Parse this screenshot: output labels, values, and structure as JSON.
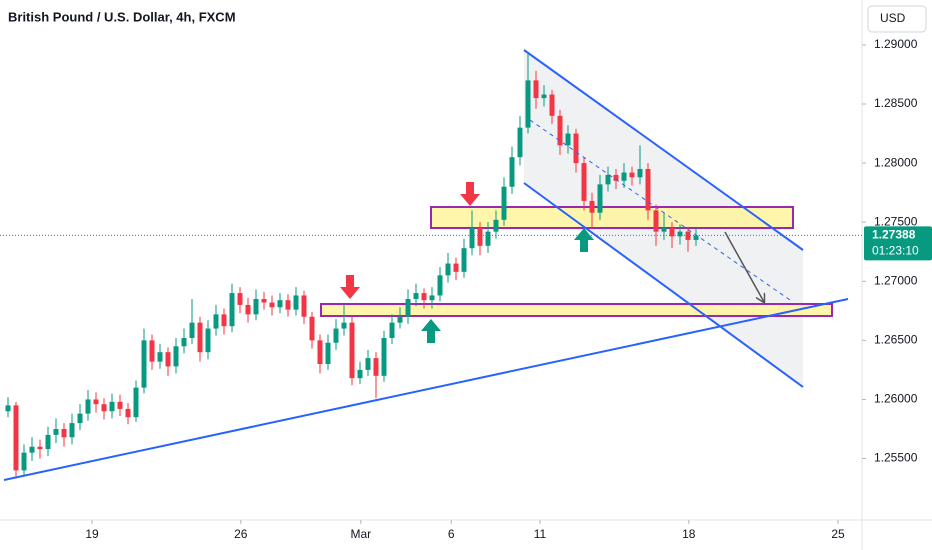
{
  "chart_data": {
    "type": "candlestick",
    "title": "British Pound / U.S. Dollar, 4h, FXCM",
    "currency": "USD",
    "last_price": 1.27388,
    "countdown": "01:23:10",
    "up_color": "#089981",
    "down_color": "#f23645",
    "open": [
      1.259,
      1.2595,
      1.254,
      1.2555,
      1.256,
      1.2558,
      1.257,
      1.2575,
      1.2568,
      1.258,
      1.2588,
      1.26,
      1.2596,
      1.259,
      1.2598,
      1.2592,
      1.2585,
      1.261,
      1.265,
      1.2632,
      1.264,
      1.2628,
      1.2645,
      1.2652,
      1.2665,
      1.264,
      1.266,
      1.2672,
      1.2662,
      1.269,
      1.268,
      1.2672,
      1.2685,
      1.2682,
      1.2678,
      1.2684,
      1.2676,
      1.2688,
      1.267,
      1.265,
      1.263,
      1.2648,
      1.266,
      1.2665,
      1.2618,
      1.2625,
      1.2635,
      1.262,
      1.2652,
      1.2665,
      1.267,
      1.2685,
      1.269,
      1.2684,
      1.2688,
      1.2705,
      1.2715,
      1.2708,
      1.2728,
      1.2745,
      1.273,
      1.2742,
      1.2752,
      1.278,
      1.2805,
      1.283,
      1.287,
      1.2855,
      1.2858,
      1.284,
      1.2815,
      1.2825,
      1.28,
      1.2768,
      1.2758,
      1.2782,
      1.279,
      1.2785,
      1.2792,
      1.2788,
      1.2795,
      1.276,
      1.2742,
      1.2745,
      1.2738,
      1.2742,
      1.2735
    ],
    "high": [
      1.2602,
      1.2598,
      1.2562,
      1.2568,
      1.2566,
      1.2577,
      1.2584,
      1.258,
      1.2588,
      1.2596,
      1.2608,
      1.2606,
      1.2601,
      1.2605,
      1.2604,
      1.2597,
      1.2616,
      1.266,
      1.2655,
      1.2647,
      1.2644,
      1.2652,
      1.266,
      1.2685,
      1.267,
      1.2667,
      1.268,
      1.2677,
      1.2698,
      1.2695,
      1.2686,
      1.2693,
      1.2691,
      1.2688,
      1.269,
      1.2689,
      1.2695,
      1.2692,
      1.2674,
      1.2655,
      1.2655,
      1.2668,
      1.268,
      1.267,
      1.2632,
      1.2642,
      1.264,
      1.2658,
      1.2672,
      1.2678,
      1.2693,
      1.2698,
      1.2694,
      1.2695,
      1.2712,
      1.2724,
      1.272,
      1.2736,
      1.276,
      1.275,
      1.275,
      1.276,
      1.2788,
      1.2814,
      1.284,
      1.2893,
      1.2878,
      1.2866,
      1.2862,
      1.2845,
      1.2832,
      1.2829,
      1.2805,
      1.2775,
      1.279,
      1.2797,
      1.2795,
      1.28,
      1.2797,
      1.2815,
      1.28,
      1.2765,
      1.2758,
      1.275,
      1.2748,
      1.2746,
      1.2745
    ],
    "low": [
      1.2585,
      1.2533,
      1.2536,
      1.2548,
      1.255,
      1.2552,
      1.2563,
      1.256,
      1.2562,
      1.2574,
      1.2582,
      1.2589,
      1.2583,
      1.2584,
      1.2586,
      1.2579,
      1.2581,
      1.2605,
      1.2625,
      1.2626,
      1.262,
      1.2622,
      1.2639,
      1.2647,
      1.2632,
      1.2634,
      1.2654,
      1.2655,
      1.2657,
      1.2673,
      1.2665,
      1.2667,
      1.2676,
      1.2671,
      1.2673,
      1.267,
      1.2671,
      1.2664,
      1.2643,
      1.2622,
      1.2625,
      1.2642,
      1.2654,
      1.2612,
      1.2613,
      1.262,
      1.2601,
      1.2615,
      1.2647,
      1.266,
      1.2664,
      1.2679,
      1.2677,
      1.2677,
      1.2683,
      1.2699,
      1.2701,
      1.2703,
      1.2722,
      1.2722,
      1.2724,
      1.2736,
      1.2747,
      1.2774,
      1.2798,
      1.2825,
      1.2846,
      1.2848,
      1.2833,
      1.2807,
      1.2808,
      1.2792,
      1.276,
      1.2745,
      1.2752,
      1.2776,
      1.2778,
      1.2779,
      1.2781,
      1.2782,
      1.2752,
      1.273,
      1.2735,
      1.2728,
      1.2731,
      1.2725,
      1.273
    ],
    "close": [
      1.2595,
      1.254,
      1.2555,
      1.256,
      1.2558,
      1.257,
      1.2575,
      1.2568,
      1.258,
      1.2588,
      1.26,
      1.2596,
      1.259,
      1.2598,
      1.2592,
      1.2585,
      1.261,
      1.265,
      1.2632,
      1.264,
      1.2628,
      1.2645,
      1.2652,
      1.2665,
      1.264,
      1.266,
      1.2672,
      1.2662,
      1.269,
      1.268,
      1.2672,
      1.2685,
      1.2682,
      1.2678,
      1.2684,
      1.2676,
      1.2688,
      1.267,
      1.265,
      1.263,
      1.2648,
      1.266,
      1.2665,
      1.2618,
      1.2625,
      1.2635,
      1.262,
      1.2652,
      1.2665,
      1.267,
      1.2685,
      1.269,
      1.2684,
      1.2688,
      1.2705,
      1.2715,
      1.2708,
      1.2728,
      1.2745,
      1.273,
      1.2742,
      1.2752,
      1.278,
      1.2805,
      1.283,
      1.287,
      1.2855,
      1.2858,
      1.284,
      1.2815,
      1.2825,
      1.28,
      1.2768,
      1.2758,
      1.2782,
      1.279,
      1.2785,
      1.2792,
      1.2788,
      1.2795,
      1.276,
      1.2742,
      1.2745,
      1.2738,
      1.2742,
      1.2735,
      1.27388
    ],
    "xlim": [
      -1,
      106.75
    ],
    "xticks": [
      {
        "value": 10.5,
        "label": "19"
      },
      {
        "value": 29.1,
        "label": "26"
      },
      {
        "value": 44.1,
        "label": "Mar"
      },
      {
        "value": 55.4,
        "label": "6"
      },
      {
        "value": 66.5,
        "label": "11"
      },
      {
        "value": 85.1,
        "label": "18"
      },
      {
        "value": 103.75,
        "label": "25"
      }
    ],
    "ylim": [
      1.2498,
      1.2938
    ],
    "yticks": [
      {
        "value": 1.255,
        "label": "1.25500"
      },
      {
        "value": 1.26,
        "label": "1.26000"
      },
      {
        "value": 1.265,
        "label": "1.26500"
      },
      {
        "value": 1.27,
        "label": "1.27000"
      },
      {
        "value": 1.275,
        "label": "1.27500"
      },
      {
        "value": 1.28,
        "label": "1.28000"
      },
      {
        "value": 1.285,
        "label": "1.28500"
      },
      {
        "value": 1.29,
        "label": "1.29000"
      }
    ]
  }
}
